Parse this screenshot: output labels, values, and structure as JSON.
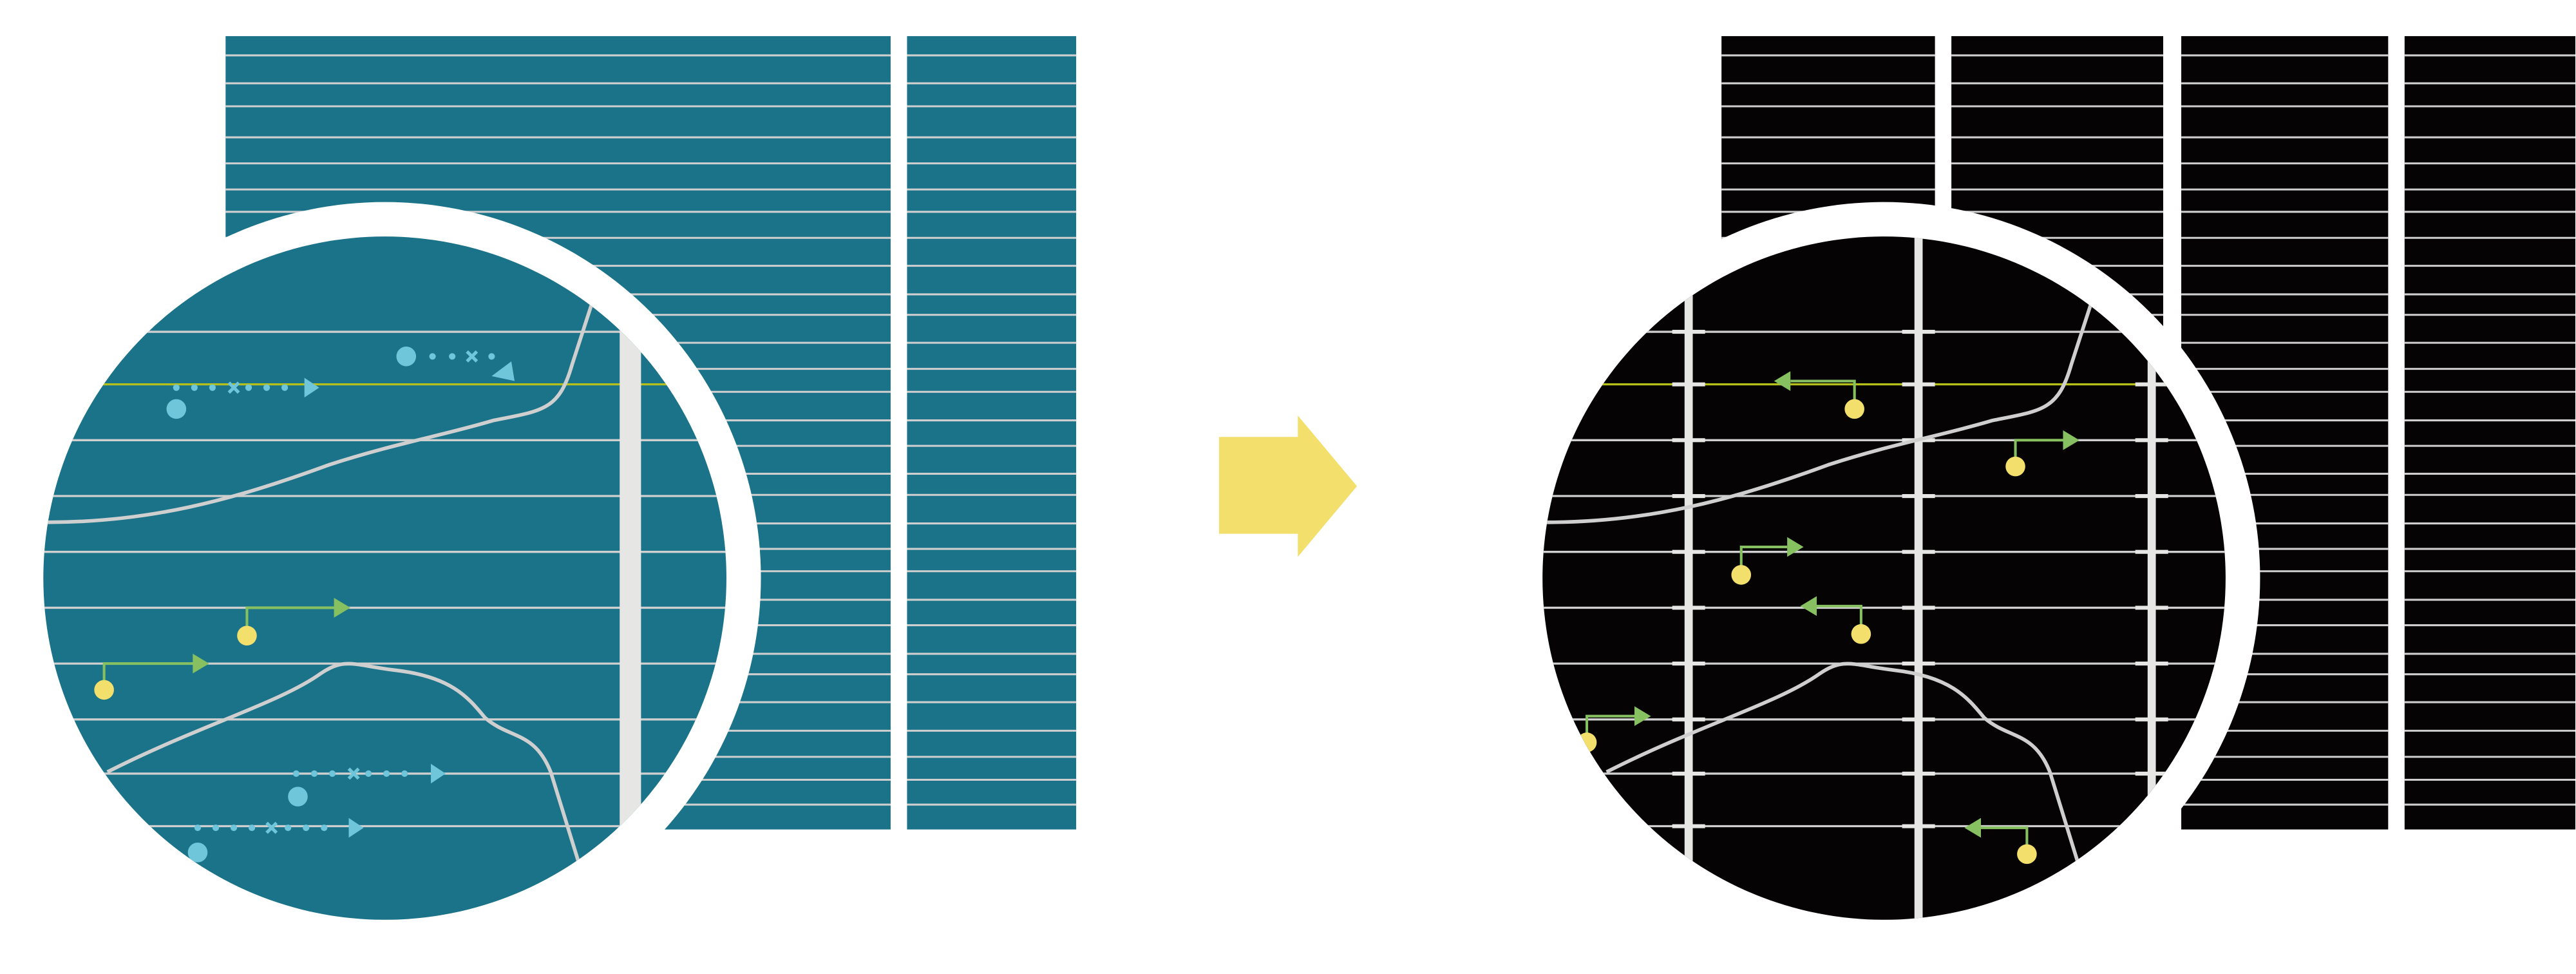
{
  "colors": {
    "background": "#ffffff",
    "before_panel": "#1b7389",
    "after_panel": "#050303",
    "grid_line": "#cfcfcf",
    "vertical_bar": "#e6e6e5",
    "highlight_line": "#b5c11a",
    "blue_marker": "#6fc5da",
    "green_arrow": "#86c060",
    "yellow_dot": "#f3df6b",
    "transition_arrow": "#f3df6b",
    "curve": "#cfcfcf",
    "lens_ring": "#ffffff"
  },
  "panels": {
    "before": {
      "column_count": 2,
      "lens": "magnified"
    },
    "after": {
      "column_count": 4,
      "lens": "magnified"
    }
  }
}
